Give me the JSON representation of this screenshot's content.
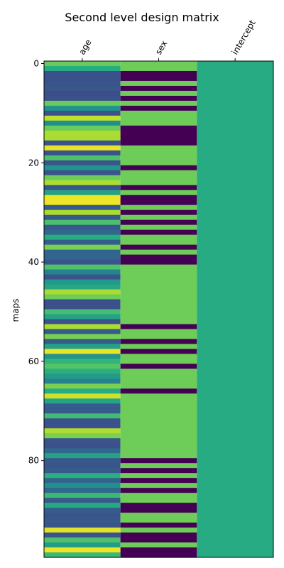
{
  "chart_data": {
    "type": "heatmap",
    "title": "Second level design matrix",
    "xlabel": "",
    "ylabel": "maps",
    "columns": [
      "age",
      "sex",
      "intercept"
    ],
    "yticks": [
      0,
      20,
      40,
      60,
      80
    ],
    "n_rows": 100,
    "colormap": "viridis",
    "value_range": [
      0,
      1
    ],
    "cell_values": {
      "age": [
        0.77,
        0.63,
        0.25,
        0.25,
        0.26,
        0.28,
        0.24,
        0.25,
        0.77,
        0.51,
        0.25,
        0.91,
        0.5,
        0.77,
        0.88,
        0.88,
        0.26,
        0.97,
        0.26,
        0.72,
        0.27,
        0.52,
        0.26,
        0.78,
        0.88,
        0.27,
        0.58,
        0.98,
        0.98,
        0.29,
        0.88,
        0.28,
        0.71,
        0.28,
        0.34,
        0.63,
        0.3,
        0.8,
        0.33,
        0.33,
        0.26,
        0.72,
        0.45,
        0.26,
        0.53,
        0.6,
        0.88,
        0.78,
        0.25,
        0.25,
        0.7,
        0.58,
        0.25,
        0.88,
        0.3,
        0.8,
        0.3,
        0.58,
        0.97,
        0.52,
        0.66,
        0.73,
        0.64,
        0.55,
        0.44,
        0.8,
        0.63,
        0.93,
        0.59,
        0.29,
        0.29,
        0.69,
        0.25,
        0.25,
        0.89,
        0.8,
        0.26,
        0.25,
        0.34,
        0.58,
        0.28,
        0.27,
        0.29,
        0.64,
        0.33,
        0.5,
        0.34,
        0.68,
        0.28,
        0.61,
        0.3,
        0.26,
        0.28,
        0.27,
        0.96,
        0.26,
        0.72,
        0.56,
        0.98,
        0.68
      ],
      "sex": [
        1,
        1,
        0,
        0,
        1,
        0,
        1,
        0,
        1,
        0,
        1,
        1,
        1,
        0,
        0,
        0,
        0,
        1,
        1,
        1,
        1,
        0,
        1,
        1,
        1,
        0,
        1,
        0,
        0,
        1,
        0,
        1,
        0,
        1,
        0,
        1,
        1,
        0,
        1,
        0,
        0,
        1,
        1,
        1,
        1,
        1,
        1,
        1,
        1,
        1,
        1,
        1,
        1,
        0,
        1,
        1,
        0,
        1,
        0,
        1,
        1,
        0,
        1,
        1,
        1,
        1,
        0,
        1,
        1,
        1,
        1,
        1,
        1,
        1,
        1,
        1,
        1,
        1,
        1,
        1,
        0,
        1,
        0,
        1,
        0,
        1,
        0,
        1,
        1,
        0,
        0,
        1,
        1,
        0,
        1,
        0,
        0,
        1,
        0,
        0
      ],
      "intercept": "constant"
    }
  }
}
